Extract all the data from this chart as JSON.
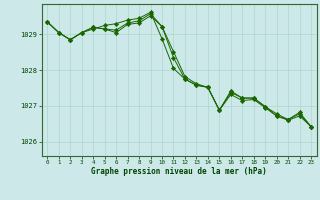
{
  "xlabel": "Graphe pression niveau de la mer (hPa)",
  "background_color": "#cce8e8",
  "line_color": "#1a6600",
  "marker_color": "#1a6600",
  "x_ticks": [
    0,
    1,
    2,
    3,
    4,
    5,
    6,
    7,
    8,
    9,
    10,
    11,
    12,
    13,
    14,
    15,
    16,
    17,
    18,
    19,
    20,
    21,
    22,
    23
  ],
  "ylim": [
    1025.6,
    1029.85
  ],
  "yticks": [
    1026,
    1027,
    1028,
    1029
  ],
  "series": [
    [
      1029.35,
      1029.05,
      1028.85,
      1029.05,
      1029.15,
      1029.25,
      1029.3,
      1029.4,
      1029.45,
      1029.62,
      1028.88,
      1028.05,
      1027.75,
      1027.58,
      1027.52,
      1026.88,
      1027.32,
      1027.15,
      1027.18,
      1026.95,
      1026.72,
      1026.6,
      1026.72,
      1026.42
    ],
    [
      1029.35,
      1029.05,
      1028.85,
      1029.05,
      1029.2,
      1029.15,
      1029.05,
      1029.28,
      1029.32,
      1029.52,
      1029.22,
      1028.35,
      1027.75,
      1027.58,
      1027.52,
      1026.88,
      1027.42,
      1027.22,
      1027.22,
      1026.98,
      1026.78,
      1026.62,
      1026.82,
      1026.42
    ],
    [
      1029.35,
      1029.05,
      1028.85,
      1029.05,
      1029.2,
      1029.15,
      1029.12,
      1029.32,
      1029.38,
      1029.58,
      1029.22,
      1028.52,
      1027.82,
      1027.62,
      1027.52,
      1026.88,
      1027.38,
      1027.22,
      1027.22,
      1026.98,
      1026.72,
      1026.62,
      1026.78,
      1026.42
    ]
  ]
}
